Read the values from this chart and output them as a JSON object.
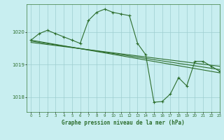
{
  "title": "Graphe pression niveau de la mer (hPa)",
  "background_color": "#c8eef0",
  "line_color": "#2d6e2d",
  "ylim": [
    1017.55,
    1020.85
  ],
  "xlim": [
    -0.5,
    23
  ],
  "yticks": [
    1018,
    1019,
    1020
  ],
  "xticks": [
    0,
    1,
    2,
    3,
    4,
    5,
    6,
    7,
    8,
    9,
    10,
    11,
    12,
    13,
    14,
    15,
    16,
    17,
    18,
    19,
    20,
    21,
    22,
    23
  ],
  "series": [
    {
      "x": [
        0,
        1,
        2,
        3,
        4,
        5,
        6,
        7,
        8,
        9,
        10,
        11,
        12,
        13,
        14,
        15,
        16,
        17,
        18,
        19,
        20,
        21,
        22,
        23
      ],
      "y": [
        1019.75,
        1019.95,
        1020.05,
        1019.95,
        1019.85,
        1019.75,
        1019.65,
        1020.35,
        1020.6,
        1020.7,
        1020.6,
        1020.55,
        1020.5,
        1019.65,
        1019.3,
        1017.85,
        1017.87,
        1018.1,
        1018.6,
        1018.35,
        1019.1,
        1019.1,
        1018.95,
        1018.8
      ],
      "marker": true
    },
    {
      "x": [
        0,
        23
      ],
      "y": [
        1019.75,
        1018.75
      ],
      "marker": false
    },
    {
      "x": [
        0,
        23
      ],
      "y": [
        1019.72,
        1018.85
      ],
      "marker": false
    },
    {
      "x": [
        0,
        23
      ],
      "y": [
        1019.68,
        1018.95
      ],
      "marker": false
    }
  ]
}
